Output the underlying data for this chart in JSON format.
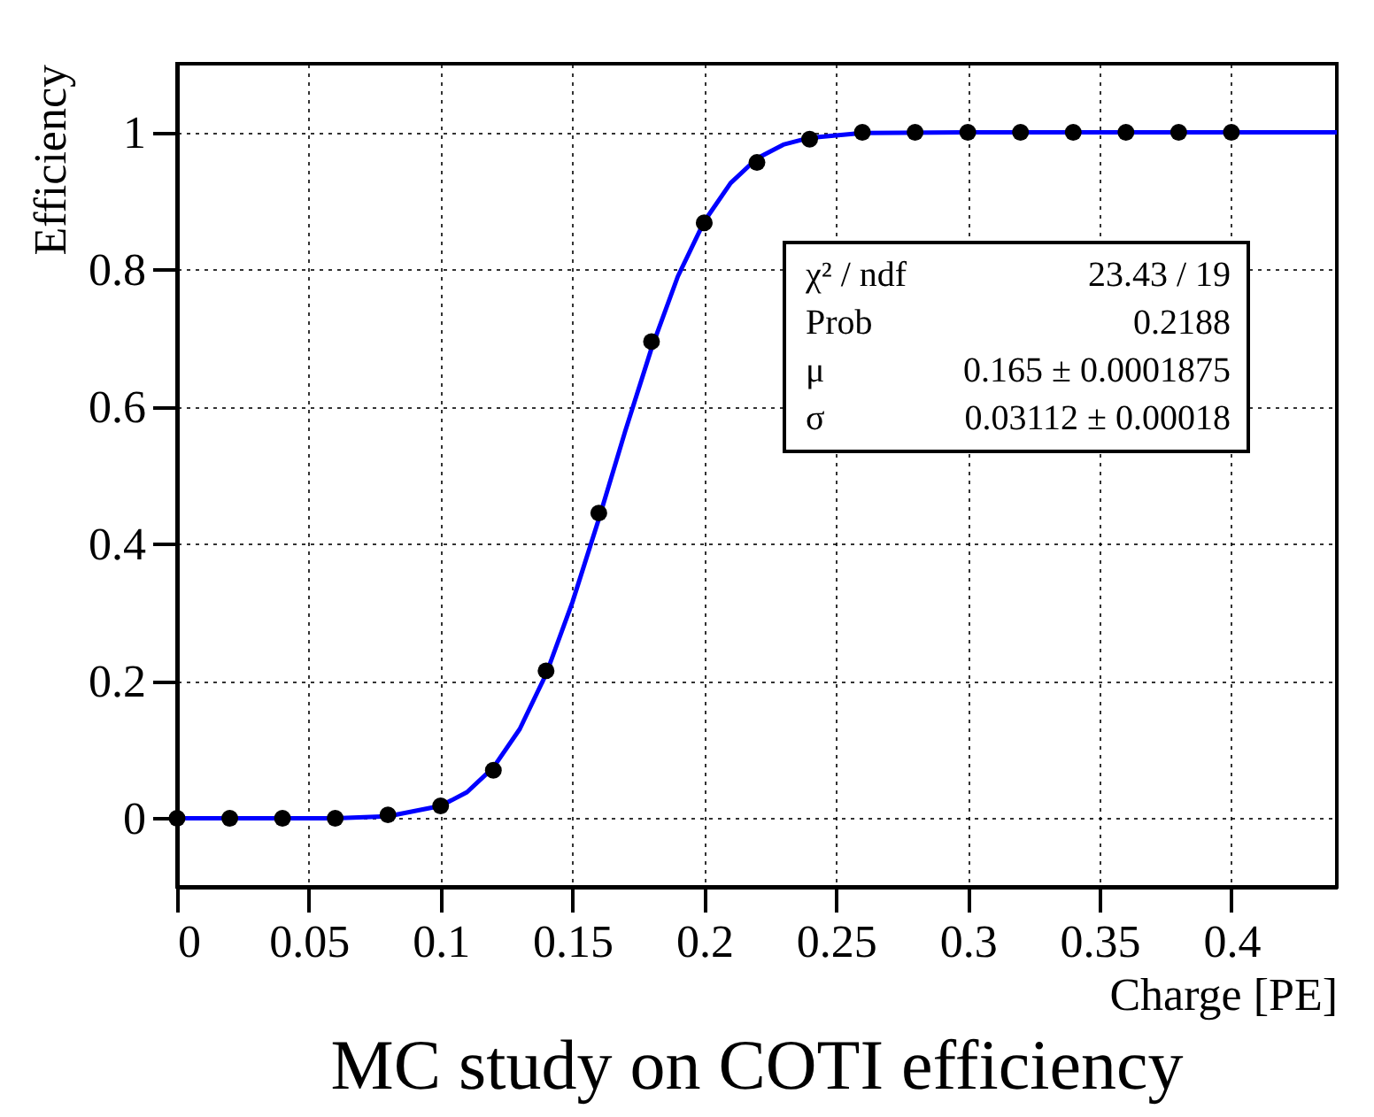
{
  "chart_data": {
    "type": "scatter",
    "title": "MC study on COTI efficiency",
    "xlabel": "Charge [PE]",
    "ylabel": "Efficiency",
    "xlim": [
      0,
      0.44
    ],
    "xticks": [
      0,
      0.05,
      0.1,
      0.15,
      0.2,
      0.25,
      0.3,
      0.35,
      0.4
    ],
    "ylim": [
      -0.1,
      1.1
    ],
    "yticks": [
      0,
      0.2,
      0.4,
      0.6,
      0.8,
      1
    ],
    "grid": true,
    "annotations": [
      "χ² / ndf",
      "23.43 / 19",
      "Prob",
      "0.2188",
      "μ",
      "0.165 ± 0.0001875",
      "σ",
      "0.03112 ± 0.00018"
    ],
    "series": [
      {
        "type": "line",
        "color": "#0000ff",
        "marker": "none",
        "line_style": "solid",
        "x": [
          0,
          0.06,
          0.08,
          0.1,
          0.11,
          0.12,
          0.13,
          0.14,
          0.15,
          0.16,
          0.17,
          0.18,
          0.19,
          0.2,
          0.21,
          0.22,
          0.23,
          0.24,
          0.26,
          0.3,
          0.44
        ],
        "values": [
          0,
          0,
          0.003,
          0.018,
          0.038,
          0.074,
          0.13,
          0.21,
          0.315,
          0.436,
          0.564,
          0.685,
          0.79,
          0.87,
          0.926,
          0.962,
          0.982,
          0.992,
          0.999,
          1,
          1
        ]
      },
      {
        "color": "#000000",
        "marker": "circle",
        "x": [
          0,
          0.02,
          0.04,
          0.06,
          0.08,
          0.1,
          0.12,
          0.14,
          0.16,
          0.18,
          0.2,
          0.22,
          0.24,
          0.26,
          0.28,
          0.3,
          0.32,
          0.34,
          0.36,
          0.38,
          0.4
        ],
        "values": [
          0,
          0,
          0,
          0,
          0.005,
          0.018,
          0.07,
          0.215,
          0.445,
          0.695,
          0.868,
          0.956,
          0.99,
          1,
          1,
          1,
          1,
          1,
          1,
          1,
          1
        ]
      }
    ]
  }
}
